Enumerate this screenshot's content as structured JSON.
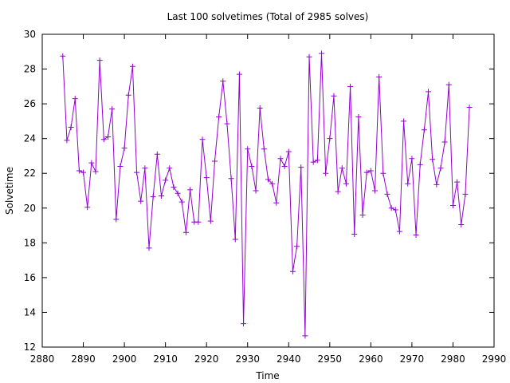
{
  "chart_data": {
    "type": "line",
    "title": "Last 100 solvetimes (Total of 2985 solves)",
    "xlabel": "Time",
    "ylabel": "Solvetime",
    "xlim": [
      2880,
      2990
    ],
    "ylim": [
      12,
      30
    ],
    "xticks": [
      2880,
      2890,
      2900,
      2910,
      2920,
      2930,
      2940,
      2950,
      2960,
      2970,
      2980,
      2990
    ],
    "yticks": [
      12,
      14,
      16,
      18,
      20,
      22,
      24,
      26,
      28,
      30
    ],
    "grid": false,
    "legend": "none",
    "series": [
      {
        "color": "#9400d3",
        "marker": "plus",
        "x": [
          2885,
          2886,
          2887,
          2888,
          2889,
          2890,
          2891,
          2892,
          2893,
          2894,
          2895,
          2896,
          2897,
          2898,
          2899,
          2900,
          2901,
          2902,
          2903,
          2904,
          2905,
          2906,
          2907,
          2908,
          2909,
          2910,
          2911,
          2912,
          2913,
          2914,
          2915,
          2916,
          2917,
          2918,
          2919,
          2920,
          2921,
          2922,
          2923,
          2924,
          2925,
          2926,
          2927,
          2928,
          2929,
          2930,
          2931,
          2932,
          2933,
          2934,
          2935,
          2936,
          2937,
          2938,
          2939,
          2940,
          2941,
          2942,
          2943,
          2944,
          2945,
          2946,
          2947,
          2948,
          2949,
          2950,
          2951,
          2952,
          2953,
          2954,
          2955,
          2956,
          2957,
          2958,
          2959,
          2960,
          2961,
          2962,
          2963,
          2964,
          2965,
          2966,
          2967,
          2968,
          2969,
          2970,
          2971,
          2972,
          2973,
          2974,
          2975,
          2976,
          2977,
          2978,
          2979,
          2980,
          2981,
          2982,
          2983,
          2984
        ],
        "y": [
          28.75,
          23.9,
          24.65,
          26.3,
          22.15,
          22.05,
          20.05,
          22.6,
          22.1,
          28.5,
          23.95,
          24.1,
          25.7,
          19.35,
          22.4,
          23.45,
          26.5,
          28.15,
          22.05,
          20.4,
          22.3,
          17.7,
          20.65,
          23.1,
          20.7,
          21.6,
          22.3,
          21.2,
          20.85,
          20.35,
          18.6,
          21.05,
          19.2,
          19.2,
          23.95,
          21.75,
          19.25,
          22.7,
          25.25,
          27.3,
          24.85,
          21.7,
          18.2,
          27.7,
          13.35,
          23.4,
          22.4,
          21.0,
          25.75,
          23.4,
          21.65,
          21.4,
          20.3,
          22.85,
          22.4,
          23.25,
          16.35,
          17.8,
          22.35,
          12.65,
          28.7,
          22.65,
          22.75,
          28.9,
          22.0,
          24.0,
          26.45,
          20.95,
          22.3,
          21.4,
          27.0,
          18.5,
          25.25,
          19.6,
          22.05,
          22.15,
          21.0,
          27.55,
          22.0,
          20.8,
          20.0,
          19.9,
          18.65,
          25.0,
          21.4,
          22.85,
          18.45,
          22.5,
          24.5,
          26.7,
          22.8,
          21.35,
          22.3,
          23.8,
          27.1,
          20.15,
          21.5,
          19.05,
          20.8,
          25.8
        ]
      }
    ]
  }
}
